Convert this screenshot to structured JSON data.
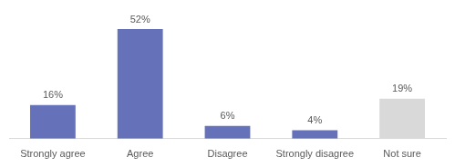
{
  "chart_data": {
    "type": "bar",
    "categories": [
      "Strongly agree",
      "Agree",
      "Disagree",
      "Strongly disagree",
      "Not sure"
    ],
    "values": [
      16,
      52,
      6,
      4,
      19
    ],
    "value_labels": [
      "16%",
      "52%",
      "6%",
      "4%",
      "19%"
    ],
    "colors": [
      "#6571b8",
      "#6571b8",
      "#6571b8",
      "#6571b8",
      "#d9d9d9"
    ],
    "ylim": [
      0,
      52
    ],
    "grid": false,
    "data_labels": true,
    "tick_labels": "x"
  }
}
